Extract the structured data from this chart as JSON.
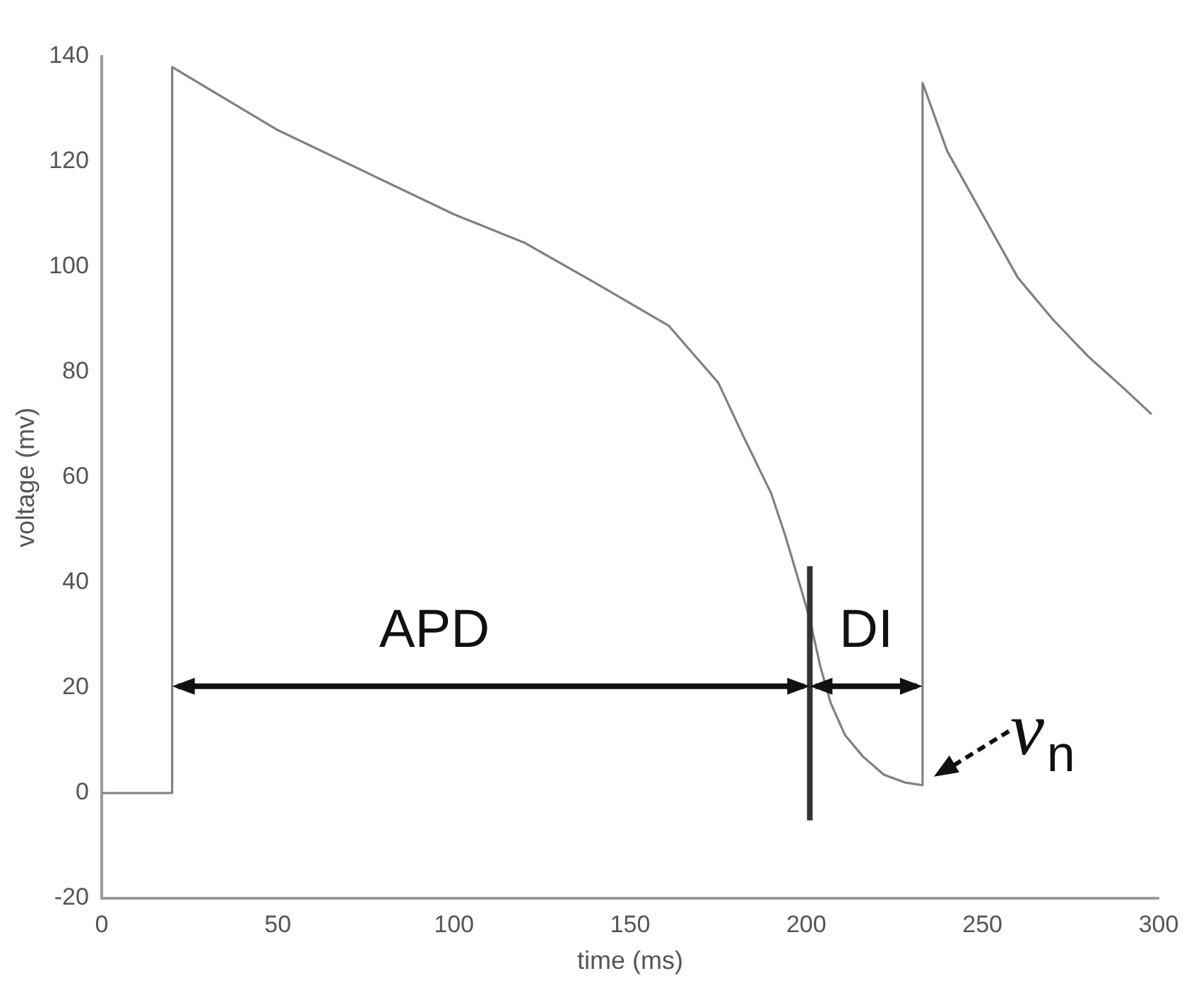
{
  "chart_data": {
    "type": "line",
    "xlabel": "time (ms)",
    "ylabel": "voltage (mv)",
    "series": [
      {
        "color": "#808080",
        "x": [
          0,
          20,
          20,
          50,
          75,
          100,
          120,
          140,
          161,
          175,
          182,
          190,
          194,
          198,
          201,
          204,
          207,
          211,
          216,
          222,
          228,
          233,
          233,
          240,
          250,
          260,
          270,
          280,
          290,
          298
        ],
        "values": [
          0,
          0,
          138,
          126,
          118,
          110,
          104.6,
          97,
          88.8,
          78,
          68,
          57,
          49,
          40,
          33,
          24,
          17,
          11,
          7,
          3.5,
          2,
          1.5,
          135,
          122,
          110,
          98,
          90,
          83,
          77,
          72
        ]
      }
    ],
    "xlim": [
      0,
      300
    ],
    "xticks": [
      0,
      50,
      100,
      150,
      200,
      250,
      300
    ],
    "ylim": [
      -20,
      140
    ],
    "yticks": [
      -20,
      0,
      20,
      40,
      60,
      80,
      100,
      120,
      140
    ],
    "grid": false,
    "legend": false,
    "marker": "none",
    "line_style": "solid",
    "ref_lines": [
      {
        "axis": "x",
        "value": 201,
        "color": "#333333"
      }
    ],
    "annotations": [
      "APD",
      "DI",
      {
        "text": "v$_{n}$",
        "x": 233,
        "y": 1.5
      }
    ]
  }
}
